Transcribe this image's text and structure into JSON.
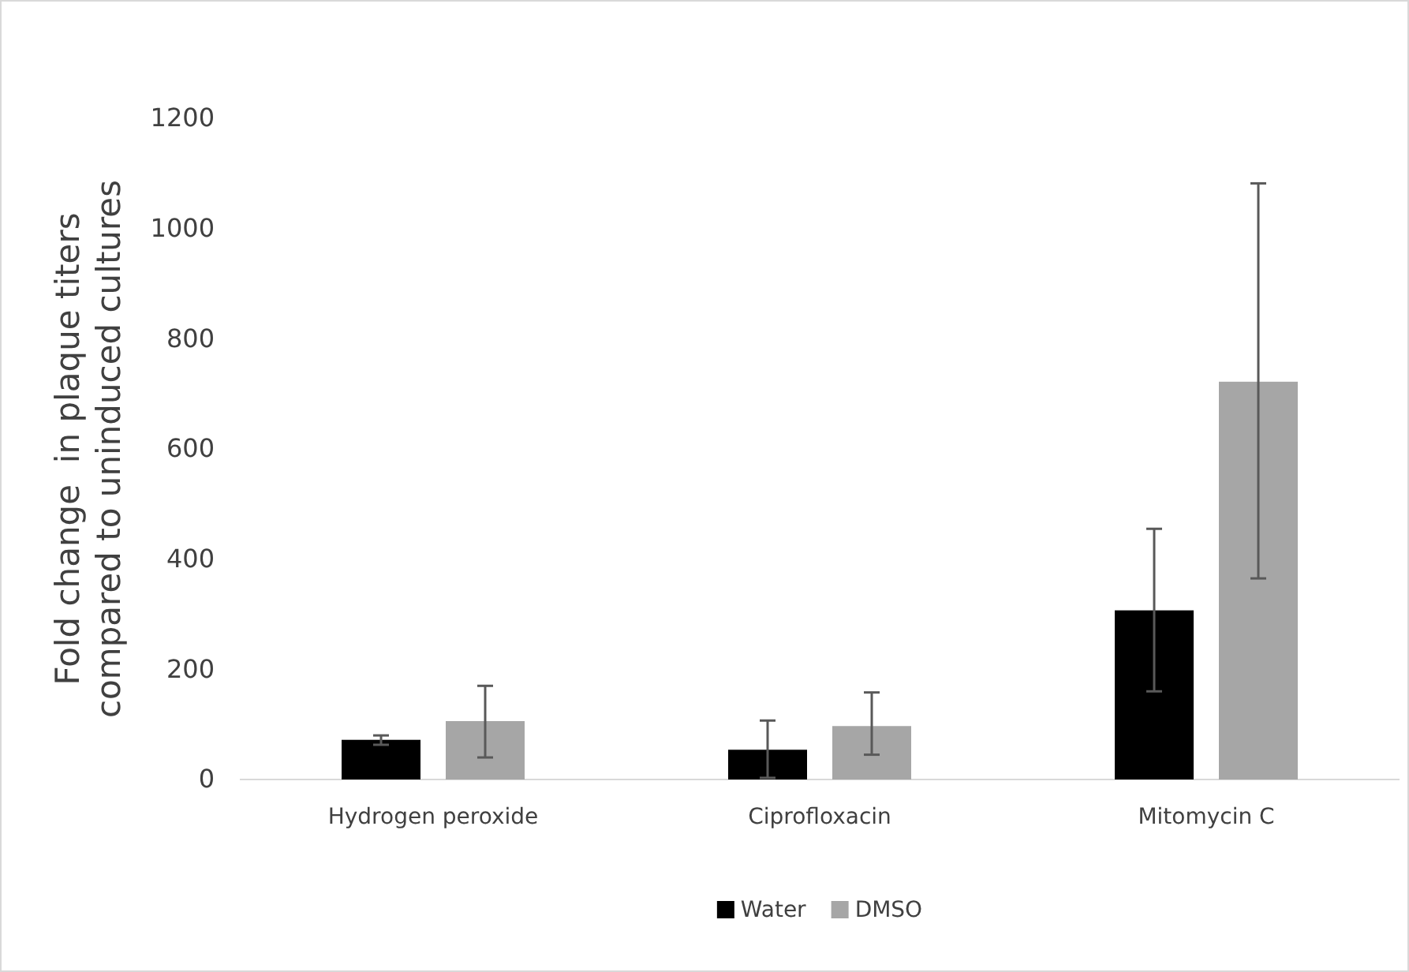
{
  "chart_data": {
    "type": "bar",
    "ylabel": "Fold change  in plaque titers compared to uninduced cultures",
    "categories": [
      "Hydrogen peroxide",
      "Ciprofloxacin",
      "Mitomycin C"
    ],
    "series": [
      {
        "name": "Water",
        "color": "#000000",
        "values": [
          72,
          54,
          307
        ],
        "errors": [
          [
            63,
            80
          ],
          [
            3,
            107
          ],
          [
            160,
            455
          ]
        ]
      },
      {
        "name": "DMSO",
        "color": "#a6a6a6",
        "values": [
          106,
          97,
          722
        ],
        "errors": [
          [
            40,
            170
          ],
          [
            45,
            158
          ],
          [
            365,
            1082
          ]
        ]
      }
    ],
    "ylim": [
      0,
      1200
    ],
    "yticks": [
      0,
      200,
      400,
      600,
      800,
      1000,
      1200
    ],
    "grid": false,
    "legend": "bottom"
  }
}
